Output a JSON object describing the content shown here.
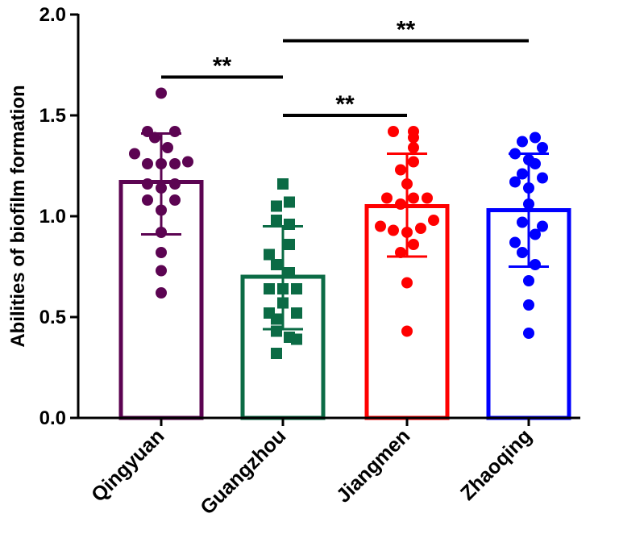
{
  "chart_data": {
    "type": "bar",
    "title": "",
    "xlabel": "",
    "ylabel": "Abilities of biofilm formation",
    "ylim": [
      0,
      2.0
    ],
    "yticks": [
      "0.0",
      "0.5",
      "1.0",
      "1.5",
      "2.0"
    ],
    "grid": false,
    "categories": [
      "Qingyuan",
      "Guangzhou",
      "Jiangmen",
      "Zhaoqing"
    ],
    "series": [
      {
        "name": "Qingyuan",
        "color": "#5c0452",
        "marker": "circle",
        "mean": 1.17,
        "sd_low": 0.91,
        "sd_high": 1.41,
        "points": [
          1.61,
          1.42,
          1.42,
          1.39,
          1.34,
          1.31,
          1.26,
          1.26,
          1.26,
          1.27,
          1.16,
          1.16,
          1.14,
          1.08,
          1.08,
          1.03,
          0.92,
          0.82,
          0.73,
          0.62
        ]
      },
      {
        "name": "Guangzhou",
        "color": "#0b6b45",
        "marker": "square",
        "mean": 0.7,
        "sd_low": 0.44,
        "sd_high": 0.95,
        "points": [
          1.16,
          1.07,
          1.05,
          0.98,
          0.96,
          0.86,
          0.81,
          0.76,
          0.72,
          0.64,
          0.64,
          0.64,
          0.57,
          0.52,
          0.52,
          0.49,
          0.43,
          0.39,
          0.4,
          0.32
        ]
      },
      {
        "name": "Jiangmen",
        "color": "#ff0000",
        "marker": "circle",
        "mean": 1.05,
        "sd_low": 0.8,
        "sd_high": 1.31,
        "points": [
          1.42,
          1.42,
          1.39,
          1.34,
          1.27,
          1.23,
          1.16,
          1.09,
          1.09,
          1.09,
          1.06,
          0.98,
          0.95,
          0.93,
          0.94,
          0.92,
          0.86,
          0.82,
          0.67,
          0.43
        ]
      },
      {
        "name": "Zhaoqing",
        "color": "#0000ff",
        "marker": "circle",
        "mean": 1.03,
        "sd_low": 0.75,
        "sd_high": 1.31,
        "points": [
          1.39,
          1.37,
          1.34,
          1.31,
          1.28,
          1.26,
          1.21,
          1.19,
          1.17,
          1.14,
          1.06,
          0.97,
          0.95,
          0.91,
          0.87,
          0.82,
          0.76,
          0.68,
          0.56,
          0.42
        ]
      }
    ],
    "annotations": [
      {
        "from": "Qingyuan",
        "to": "Guangzhou",
        "y": 1.69,
        "label": "**"
      },
      {
        "from": "Guangzhou",
        "to": "Jiangmen",
        "y": 1.5,
        "label": "**"
      },
      {
        "from": "Guangzhou",
        "to": "Zhaoqing",
        "y": 1.87,
        "label": "**"
      }
    ]
  }
}
